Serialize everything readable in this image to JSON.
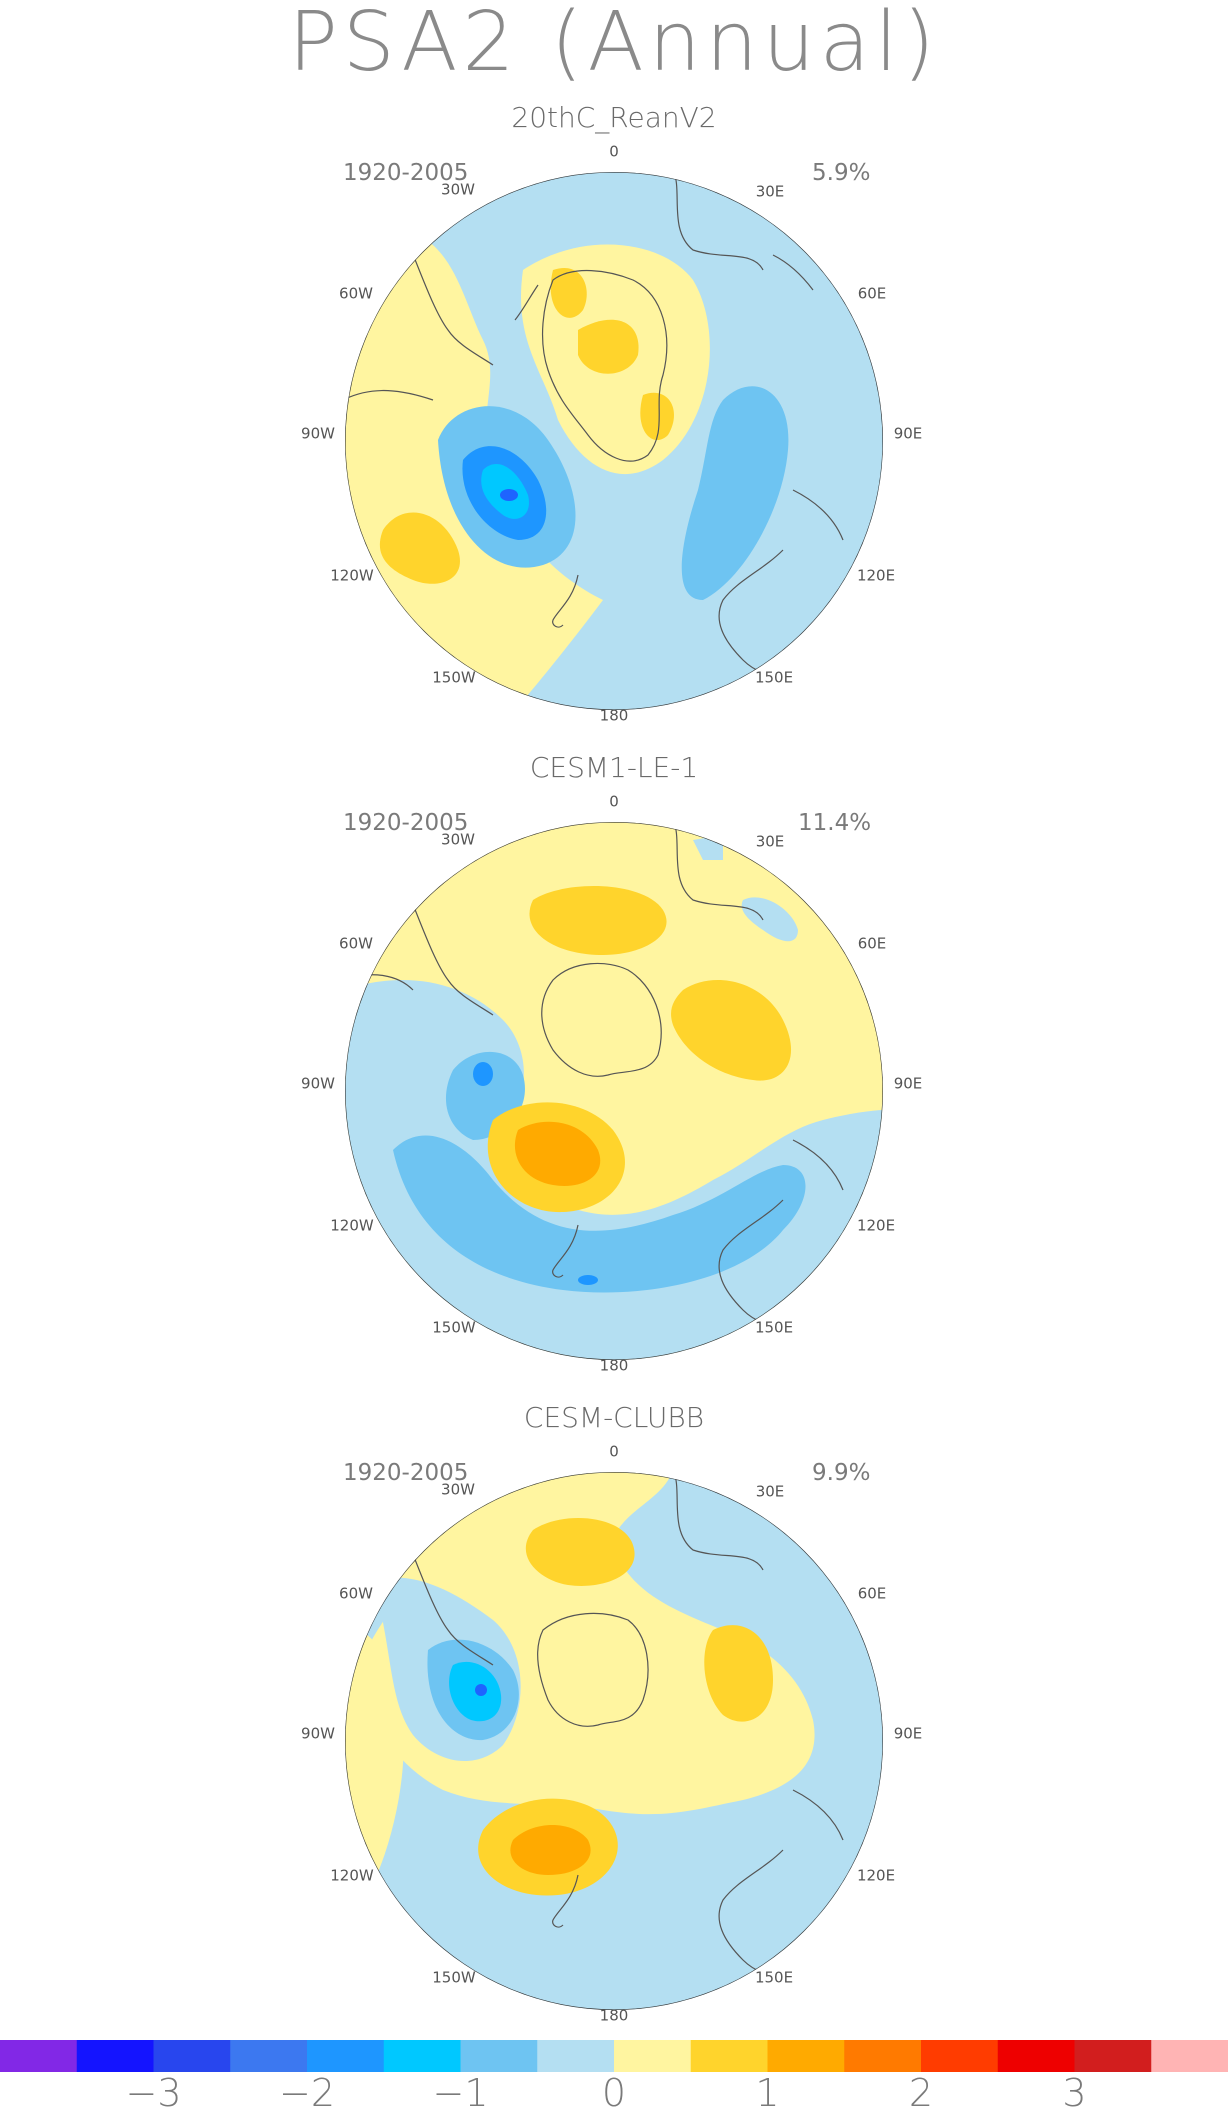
{
  "title": "PSA2 (Annual)",
  "panels": [
    {
      "name": "20thC_ReanV2",
      "period": "1920-2005",
      "variance": "5.9%",
      "lon_labels": {
        "0": "0",
        "30E": "30E",
        "60E": "60E",
        "90E": "90E",
        "120E": "120E",
        "150E": "150E",
        "180": "180",
        "150W": "150W",
        "120W": "120W",
        "90W": "90W",
        "60W": "60W",
        "30W": "30W"
      }
    },
    {
      "name": "CESM1-LE-1",
      "period": "1920-2005",
      "variance": "11.4%",
      "lon_labels": {
        "0": "0",
        "30E": "30E",
        "60E": "60E",
        "90E": "90E",
        "120E": "120E",
        "150E": "150E",
        "180": "180",
        "150W": "150W",
        "120W": "120W",
        "90W": "90W",
        "60W": "60W",
        "30W": "30W"
      }
    },
    {
      "name": "CESM-CLUBB",
      "period": "1920-2005",
      "variance": "9.9%",
      "lon_labels": {
        "0": "0",
        "30E": "30E",
        "60E": "60E",
        "90E": "90E",
        "120E": "120E",
        "150E": "150E",
        "180": "180",
        "150W": "150W",
        "120W": "120W",
        "90W": "90W",
        "60W": "60W",
        "30W": "30W"
      }
    }
  ],
  "colorbar": {
    "labels": [
      "−3",
      "−2",
      "−1",
      "0",
      "1",
      "2",
      "3"
    ],
    "colors": [
      "#8228e6",
      "#1414ff",
      "#2846ee",
      "#3c78f0",
      "#1e96ff",
      "#00c8ff",
      "#6ec4f2",
      "#b4dff2",
      "#fff5a0",
      "#ffd42c",
      "#ffaa00",
      "#ff7a00",
      "#ff3c00",
      "#ee0000",
      "#d21e1e",
      "#ffb4b4"
    ]
  },
  "palette": {
    "yellow_light": "#fff5a0",
    "yellow": "#ffd42c",
    "orange": "#ffaa00",
    "blue_pale": "#b4dff2",
    "blue_light": "#6ec4f2",
    "cyan": "#00c8ff",
    "blue": "#1e96ff",
    "coast": "#555555"
  }
}
